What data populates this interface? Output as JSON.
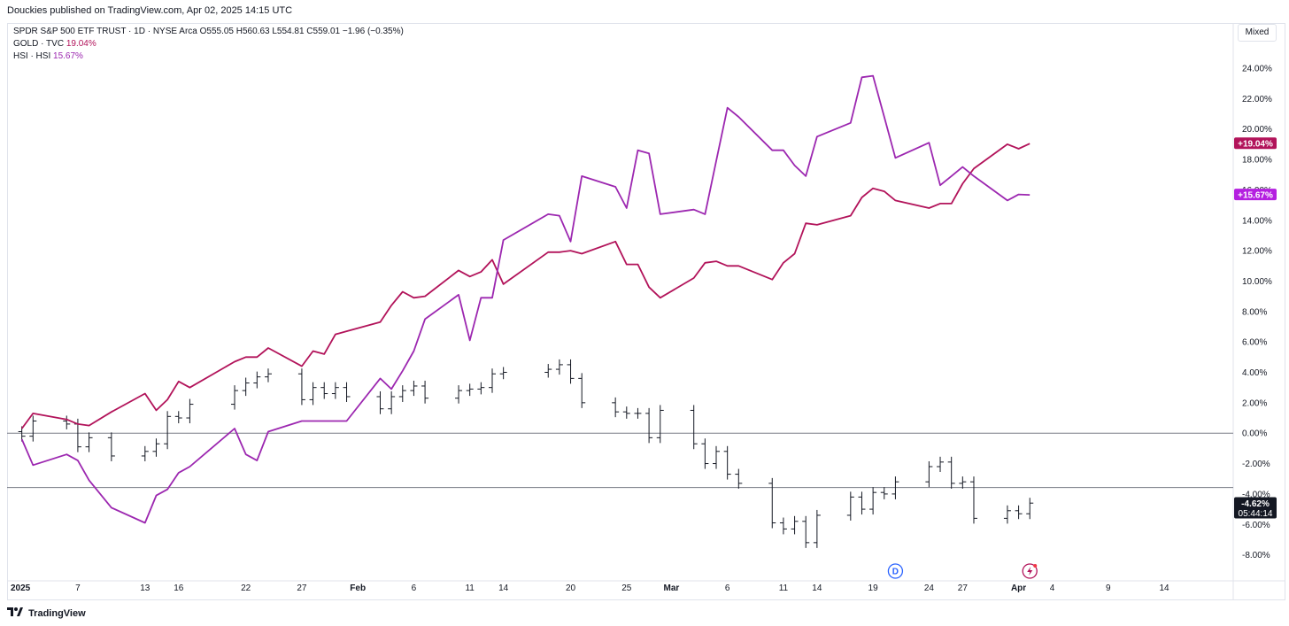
{
  "header": {
    "publisher_text": "Douckies published on TradingView.com, Apr 02, 2025 14:15 UTC"
  },
  "legend": {
    "main_title": "SPDR S&P 500 ETF TRUST · 1D · NYSE Arca",
    "ohlc": "O555.05  H560.63  L554.81  C559.01  −1.96 (−0.35%)",
    "gold_name": "GOLD · TVC",
    "gold_value": "19.04%",
    "hsi_name": "HSI · HSI",
    "hsi_value": "15.67%"
  },
  "controls": {
    "scale_mode": "Mixed"
  },
  "footer": {
    "brand": "TradingView"
  },
  "colors": {
    "spy": "#131722",
    "gold": "#b2135a",
    "hsi": "#9c27b0",
    "gold_badge": "#b2135a",
    "hsi_badge": "#b41fe0",
    "spy_badge": "#131722",
    "grid_line": "#787b86",
    "axis_text": "#131722"
  },
  "chart_data": {
    "type": "line",
    "price_scale_unit": "percent",
    "ylim": [
      -9,
      25.5
    ],
    "y_ticks": [
      "24.00%",
      "22.00%",
      "20.00%",
      "18.00%",
      "16.00%",
      "14.00%",
      "12.00%",
      "10.00%",
      "8.00%",
      "6.00%",
      "4.00%",
      "2.00%",
      "0.00%",
      "-2.00%",
      "-4.00%",
      "-6.00%",
      "-8.00%"
    ],
    "x_ticks": [
      "2025",
      "7",
      "13",
      "16",
      "22",
      "27",
      "Feb",
      "6",
      "11",
      "14",
      "20",
      "25",
      "Mar",
      "6",
      "11",
      "14",
      "19",
      "24",
      "27",
      "Apr",
      "4",
      "9",
      "14"
    ],
    "xlim": [
      "2025-01-01",
      "2025-04-17"
    ],
    "x_tick_dates": [
      "2025-01-01",
      "2025-01-07",
      "2025-01-13",
      "2025-01-16",
      "2025-01-22",
      "2025-01-27",
      "2025-02-01",
      "2025-02-06",
      "2025-02-11",
      "2025-02-14",
      "2025-02-20",
      "2025-02-25",
      "2025-03-01",
      "2025-03-06",
      "2025-03-11",
      "2025-03-14",
      "2025-03-19",
      "2025-03-24",
      "2025-03-27",
      "2025-04-01",
      "2025-04-04",
      "2025-04-09",
      "2025-04-14"
    ],
    "dates": [
      "2025-01-02",
      "2025-01-03",
      "2025-01-06",
      "2025-01-07",
      "2025-01-08",
      "2025-01-10",
      "2025-01-13",
      "2025-01-14",
      "2025-01-15",
      "2025-01-16",
      "2025-01-17",
      "2025-01-21",
      "2025-01-22",
      "2025-01-23",
      "2025-01-24",
      "2025-01-27",
      "2025-01-28",
      "2025-01-29",
      "2025-01-30",
      "2025-01-31",
      "2025-02-03",
      "2025-02-04",
      "2025-02-05",
      "2025-02-06",
      "2025-02-07",
      "2025-02-10",
      "2025-02-11",
      "2025-02-12",
      "2025-02-13",
      "2025-02-14",
      "2025-02-18",
      "2025-02-19",
      "2025-02-20",
      "2025-02-21",
      "2025-02-24",
      "2025-02-25",
      "2025-02-26",
      "2025-02-27",
      "2025-02-28",
      "2025-03-03",
      "2025-03-04",
      "2025-03-05",
      "2025-03-06",
      "2025-03-07",
      "2025-03-10",
      "2025-03-11",
      "2025-03-12",
      "2025-03-13",
      "2025-03-14",
      "2025-03-17",
      "2025-03-18",
      "2025-03-19",
      "2025-03-20",
      "2025-03-21",
      "2025-03-24",
      "2025-03-25",
      "2025-03-26",
      "2025-03-27",
      "2025-03-28",
      "2025-03-31",
      "2025-04-01",
      "2025-04-02"
    ],
    "series": [
      {
        "name": "SPDR S&P 500 ETF TRUST",
        "style": "ohlc-bars",
        "close_values": [
          -0.2,
          0.8,
          0.6,
          -0.9,
          -0.3,
          -1.5,
          -1.2,
          -0.7,
          1.1,
          1.0,
          1.9,
          2.8,
          3.3,
          3.7,
          3.9,
          2.2,
          3.0,
          2.6,
          3.0,
          2.4,
          1.6,
          2.4,
          2.8,
          3.1,
          2.3,
          2.8,
          2.9,
          3.0,
          3.9,
          4.0,
          4.2,
          4.5,
          3.6,
          2.0,
          1.4,
          1.3,
          1.3,
          -0.3,
          1.5,
          -0.7,
          -2.0,
          -1.2,
          -2.7,
          -3.3,
          -5.9,
          -6.3,
          -5.8,
          -7.2,
          -5.4,
          -4.2,
          -5.0,
          -3.9,
          -4.0,
          -3.2,
          -2.2,
          -1.9,
          -3.3,
          -3.2,
          -5.6,
          -5.1,
          -5.3,
          -4.6
        ]
      },
      {
        "name": "GOLD · TVC",
        "style": "line",
        "values": [
          0.3,
          1.3,
          0.9,
          0.6,
          0.5,
          1.4,
          2.6,
          1.5,
          2.2,
          3.4,
          3.0,
          4.7,
          5.0,
          5.0,
          5.6,
          4.4,
          5.4,
          5.2,
          6.5,
          6.7,
          7.3,
          8.4,
          9.3,
          8.9,
          9.0,
          10.7,
          10.3,
          10.6,
          11.4,
          9.8,
          11.9,
          11.9,
          12.0,
          11.8,
          12.6,
          11.1,
          11.1,
          9.6,
          8.9,
          10.2,
          11.2,
          11.3,
          11.0,
          11.0,
          10.1,
          11.2,
          11.8,
          13.8,
          13.7,
          14.3,
          15.5,
          16.1,
          15.9,
          15.3,
          14.8,
          15.1,
          15.1,
          16.4,
          17.4,
          19.0,
          18.7,
          19.04
        ]
      },
      {
        "name": "HSI · HSI",
        "style": "line",
        "values": [
          -0.4,
          -2.1,
          -1.4,
          -1.8,
          -3.1,
          -4.9,
          -5.9,
          -4.1,
          -3.7,
          -2.6,
          -2.2,
          0.3,
          -1.4,
          -1.8,
          0.1,
          0.8,
          0.8,
          0.8,
          0.8,
          0.8,
          3.6,
          2.9,
          4.1,
          5.4,
          7.5,
          9.1,
          6.1,
          8.9,
          8.9,
          12.7,
          14.4,
          14.3,
          12.6,
          16.9,
          16.2,
          14.8,
          18.6,
          18.4,
          14.4,
          14.7,
          14.4,
          17.9,
          21.4,
          20.8,
          18.6,
          18.6,
          17.6,
          16.9,
          19.5,
          20.4,
          23.4,
          23.5,
          20.8,
          18.1,
          19.1,
          16.3,
          16.9,
          17.5,
          16.9,
          15.3,
          15.7,
          15.67
        ]
      }
    ],
    "price_line_value": -3.58,
    "last_value_badges": [
      {
        "series": "GOLD · TVC",
        "value": 19.04,
        "text": "+19.04%"
      },
      {
        "series": "HSI · HSI",
        "value": 15.67,
        "text": "+15.67%"
      },
      {
        "series": "SPDR S&P 500 ETF TRUST",
        "value": -4.62,
        "text": "-4.62%",
        "countdown": "05:44:14"
      }
    ],
    "event_markers": [
      {
        "type": "dividend",
        "label": "D",
        "date": "2025-03-21"
      },
      {
        "type": "flash",
        "label": "⚡",
        "date": "2025-04-02"
      }
    ]
  }
}
